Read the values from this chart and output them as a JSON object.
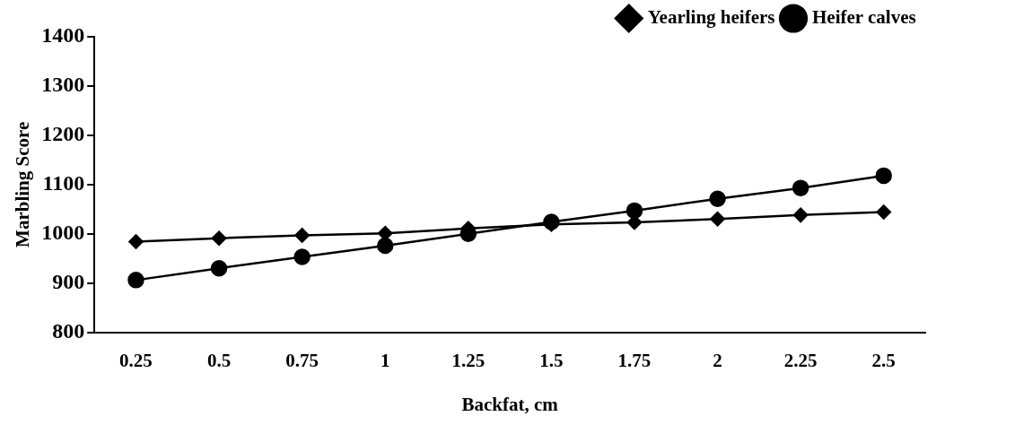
{
  "chart_data": {
    "type": "line",
    "xlabel": "Backfat, cm",
    "ylabel": "Marbling Score",
    "categories": [
      "0.25",
      "0.5",
      "0.75",
      "1",
      "1.25",
      "1.5",
      "1.75",
      "2",
      "2.25",
      "2.5"
    ],
    "series": [
      {
        "name": "Yearling heifers",
        "color": "#000000",
        "marker": "diamond",
        "values": [
          984,
          991,
          997,
          1001,
          1011,
          1019,
          1023,
          1030,
          1038,
          1044
        ]
      },
      {
        "name": "Heifer calves",
        "color": "#000000",
        "marker": "circle",
        "values": [
          906,
          930,
          953,
          976,
          1000,
          1024,
          1047,
          1071,
          1093,
          1118
        ]
      }
    ],
    "ylim": [
      800,
      1400
    ],
    "yticks": [
      800,
      900,
      1000,
      1100,
      1200,
      1300,
      1400
    ],
    "grid": false,
    "legend": "top right",
    "line_style": "solid"
  }
}
